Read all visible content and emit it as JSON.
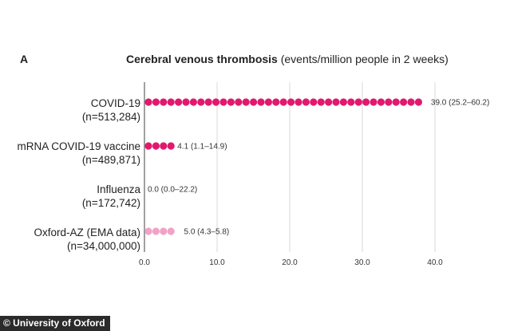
{
  "panel_letter": "A",
  "title_bold": "Cerebral venous thrombosis",
  "title_rest": " (events/million people in 2 weeks)",
  "credit": "© University of Oxford",
  "chart_data": {
    "type": "bar",
    "title": "Cerebral venous thrombosis (events/million people in 2 weeks)",
    "orientation": "horizontal",
    "xlim": [
      0,
      40
    ],
    "x_ticks": [
      "0.0",
      "10.0",
      "20.0",
      "30.0",
      "40.0"
    ],
    "grid": true,
    "categories": [
      {
        "name": "COVID-19",
        "n": "(n=513,284)",
        "value": 39.0,
        "label": "39.0 (25.2–60.2)",
        "color": "#e0196e"
      },
      {
        "name": "mRNA COVID-19 vaccine",
        "n": "(n=489,871)",
        "value": 4.1,
        "label": "4.1 (1.1–14.9)",
        "color": "#e0196e"
      },
      {
        "name": "Influenza",
        "n": "(n=172,742)",
        "value": 0.0,
        "label": "0.0 (0.0–22.2)",
        "color": "#e0196e"
      },
      {
        "name": "Oxford-AZ (EMA data)",
        "n": "(n=34,000,000)",
        "value": 5.0,
        "label": "5.0 (4.3–5.8)",
        "color": "#f0a3c6"
      }
    ]
  }
}
